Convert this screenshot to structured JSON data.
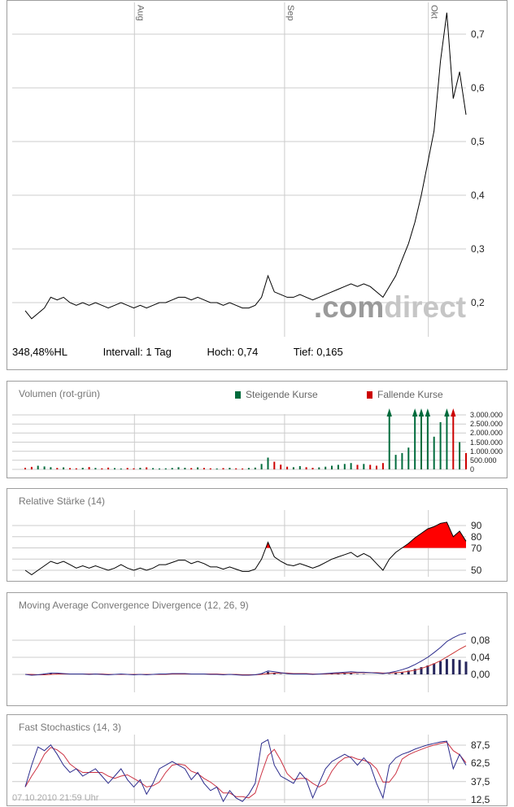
{
  "watermark": {
    "prefix": ".com",
    "suffix": "direct"
  },
  "footer": {
    "timestamp": "07.10.2010 21:59 Uhr"
  },
  "colors": {
    "up": "#006b3c",
    "down": "#cc0000",
    "price_line": "#000000",
    "rsi_line": "#000000",
    "rsi_fill": "#ff0000",
    "macd_line": "#2b2b8c",
    "signal_line": "#cc3333",
    "hist_bar": "#26265c",
    "stoch_k": "#2b2b8c",
    "stoch_d": "#cc3344",
    "grid": "#cccccc",
    "month_label": "#666666"
  },
  "chart_data": [
    {
      "type": "line",
      "id": "price",
      "title": "",
      "x_ticks": [
        {
          "label": "Aug",
          "i": 17.1
        },
        {
          "label": "Sep",
          "i": 40.6
        },
        {
          "label": "Okt",
          "i": 63.1
        }
      ],
      "y_ticks": [
        {
          "label": "0,7",
          "v": 0.7
        },
        {
          "label": "0,6",
          "v": 0.6
        },
        {
          "label": "0,5",
          "v": 0.5
        },
        {
          "label": "0,4",
          "v": 0.4
        },
        {
          "label": "0,3",
          "v": 0.3
        },
        {
          "label": "0,2",
          "v": 0.2
        }
      ],
      "series": [
        {
          "name": "Kurs",
          "values": [
            0.185,
            0.17,
            0.18,
            0.19,
            0.21,
            0.205,
            0.21,
            0.2,
            0.195,
            0.2,
            0.195,
            0.2,
            0.195,
            0.19,
            0.195,
            0.2,
            0.195,
            0.19,
            0.195,
            0.19,
            0.195,
            0.2,
            0.2,
            0.205,
            0.21,
            0.21,
            0.205,
            0.21,
            0.205,
            0.2,
            0.2,
            0.195,
            0.2,
            0.195,
            0.19,
            0.19,
            0.195,
            0.21,
            0.25,
            0.22,
            0.215,
            0.21,
            0.21,
            0.215,
            0.21,
            0.205,
            0.21,
            0.215,
            0.22,
            0.225,
            0.23,
            0.235,
            0.23,
            0.235,
            0.23,
            0.22,
            0.21,
            0.23,
            0.25,
            0.28,
            0.31,
            0.35,
            0.4,
            0.46,
            0.52,
            0.65,
            0.74,
            0.58,
            0.63,
            0.55
          ]
        }
      ],
      "info": {
        "change": "348,48%HL",
        "interval": "Intervall: 1 Tag",
        "high": "Hoch:  0,74",
        "low": "Tief:  0,165"
      }
    },
    {
      "type": "bar",
      "id": "volume",
      "title": "Volumen (rot-grün)",
      "legend": [
        {
          "label": "Steigende Kurse",
          "color": "#006b3c"
        },
        {
          "label": "Fallende Kurse",
          "color": "#cc0000"
        }
      ],
      "y_ticks": [
        {
          "label": "3.000.000",
          "v": 3000000
        },
        {
          "label": "2.500.000",
          "v": 2500000
        },
        {
          "label": "2.000.000",
          "v": 2000000
        },
        {
          "label": "1.500.000",
          "v": 1500000
        },
        {
          "label": "1.000.000",
          "v": 1000000
        },
        {
          "label": "500.000",
          "v": 500000
        },
        {
          "label": "0",
          "v": 0
        }
      ],
      "clip": 3000000,
      "values": [
        90000,
        140000,
        200000,
        160000,
        120000,
        80000,
        110000,
        70000,
        60000,
        90000,
        130000,
        80000,
        60000,
        100000,
        70000,
        50000,
        80000,
        60000,
        90000,
        110000,
        70000,
        50000,
        60000,
        80000,
        120000,
        90000,
        70000,
        110000,
        80000,
        60000,
        50000,
        70000,
        90000,
        60000,
        50000,
        80000,
        100000,
        300000,
        650000,
        420000,
        260000,
        150000,
        120000,
        180000,
        120000,
        90000,
        110000,
        150000,
        200000,
        250000,
        300000,
        350000,
        250000,
        300000,
        250000,
        200000,
        350000,
        3500000,
        800000,
        900000,
        1200000,
        3800000,
        3600000,
        4000000,
        1800000,
        2600000,
        4200000,
        3900000,
        1500000,
        900000
      ]
    },
    {
      "type": "line-area",
      "id": "rsi",
      "title": "Relative Stärke (14)",
      "y_ticks": [
        {
          "label": "90",
          "v": 90
        },
        {
          "label": "80",
          "v": 80
        },
        {
          "label": "70",
          "v": 70
        },
        {
          "label": "50",
          "v": 50
        }
      ],
      "gridlines": [
        90,
        80,
        70,
        60,
        50
      ],
      "threshold": 70,
      "values": [
        50,
        46,
        50,
        54,
        58,
        56,
        58,
        55,
        52,
        54,
        52,
        54,
        52,
        50,
        52,
        55,
        52,
        50,
        52,
        50,
        52,
        55,
        55,
        57,
        59,
        59,
        56,
        58,
        56,
        53,
        53,
        51,
        53,
        51,
        49,
        49,
        51,
        60,
        75,
        62,
        58,
        55,
        54,
        56,
        54,
        52,
        54,
        57,
        60,
        62,
        64,
        66,
        62,
        65,
        62,
        56,
        50,
        60,
        66,
        70,
        74,
        79,
        83,
        87,
        89,
        92,
        93,
        80,
        85,
        76
      ]
    },
    {
      "type": "macd",
      "id": "macd",
      "title": "Moving Average Convergence Divergence (12, 26, 9)",
      "y_ticks": [
        {
          "label": "0,08",
          "v": 0.08
        },
        {
          "label": "0,04",
          "v": 0.04
        },
        {
          "label": "0,00",
          "v": 0
        }
      ],
      "macd": [
        0,
        -0.002,
        -0.001,
        0.001,
        0.003,
        0.003,
        0.002,
        0.001,
        0.001,
        0.001,
        0,
        0.001,
        0,
        -0.001,
        0,
        0.001,
        0,
        -0.001,
        0,
        -0.001,
        0,
        0.001,
        0.001,
        0.002,
        0.002,
        0.002,
        0.001,
        0.001,
        0.001,
        0,
        0,
        -0.001,
        0,
        -0.001,
        -0.002,
        -0.002,
        -0.001,
        0.002,
        0.008,
        0.006,
        0.004,
        0.002,
        0.001,
        0.001,
        0.001,
        0,
        0.001,
        0.002,
        0.003,
        0.004,
        0.005,
        0.006,
        0.005,
        0.005,
        0.004,
        0.003,
        0.002,
        0.004,
        0.007,
        0.011,
        0.016,
        0.023,
        0.031,
        0.04,
        0.051,
        0.063,
        0.077,
        0.086,
        0.093,
        0.097
      ],
      "signal": [
        0,
        0,
        -0.001,
        -0.001,
        0,
        0.001,
        0.001,
        0.001,
        0.001,
        0.001,
        0.001,
        0.001,
        0.001,
        0,
        0,
        0,
        0,
        0,
        0,
        0,
        0,
        0,
        0,
        0.001,
        0.001,
        0.001,
        0.001,
        0.001,
        0.001,
        0.001,
        0.001,
        0,
        0,
        0,
        -0.001,
        -0.001,
        -0.001,
        0,
        0.002,
        0.003,
        0.003,
        0.003,
        0.002,
        0.002,
        0.002,
        0.001,
        0.001,
        0.001,
        0.002,
        0.002,
        0.003,
        0.003,
        0.004,
        0.004,
        0.004,
        0.004,
        0.003,
        0.003,
        0.004,
        0.005,
        0.007,
        0.01,
        0.014,
        0.019,
        0.025,
        0.032,
        0.041,
        0.05,
        0.059,
        0.067
      ]
    },
    {
      "type": "stoch",
      "id": "stochastics",
      "title": "Fast Stochastics (14, 3)",
      "y_ticks": [
        {
          "label": "87,5",
          "v": 87.5
        },
        {
          "label": "62,5",
          "v": 62.5
        },
        {
          "label": "37,5",
          "v": 37.5
        },
        {
          "label": "12,5",
          "v": 12.5
        }
      ],
      "k": [
        30,
        60,
        85,
        80,
        88,
        75,
        60,
        50,
        55,
        45,
        50,
        55,
        45,
        35,
        45,
        55,
        40,
        30,
        40,
        20,
        35,
        55,
        60,
        65,
        60,
        55,
        40,
        50,
        35,
        25,
        30,
        10,
        25,
        15,
        10,
        20,
        35,
        90,
        95,
        60,
        45,
        40,
        35,
        50,
        40,
        15,
        35,
        55,
        65,
        70,
        75,
        70,
        60,
        70,
        60,
        35,
        15,
        60,
        70,
        75,
        78,
        82,
        85,
        88,
        90,
        92,
        93,
        55,
        75,
        60
      ]
    }
  ]
}
